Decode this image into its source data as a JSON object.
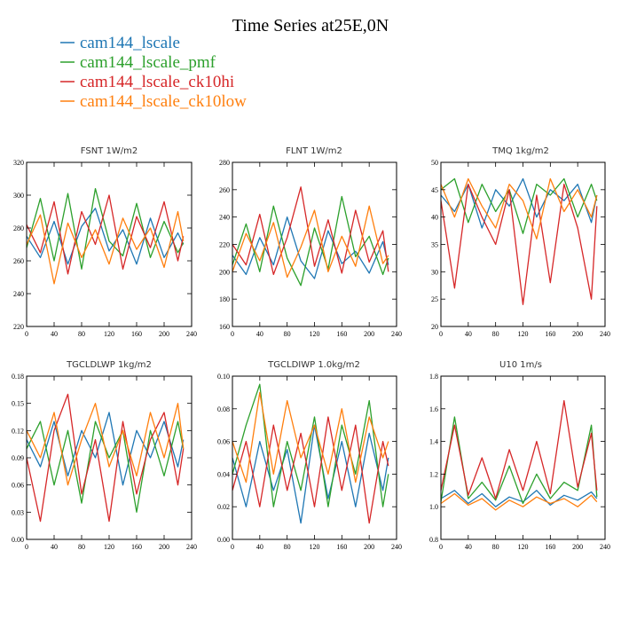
{
  "figure": {
    "title": "Time Series at25E,0N"
  },
  "legend": [
    {
      "name": "cam144_lscale",
      "color": "#1f77b4"
    },
    {
      "name": "cam144_lscale_pmf",
      "color": "#2ca02c"
    },
    {
      "name": "cam144_lscale_ck10hi",
      "color": "#d62728"
    },
    {
      "name": "cam144_lscale_ck10low",
      "color": "#ff7f0e"
    }
  ],
  "chart_data": [
    {
      "type": "line",
      "title": "FSNT   1W/m2",
      "xlim": [
        0,
        240
      ],
      "ylim": [
        220,
        320
      ],
      "xticks": [
        0,
        40,
        80,
        120,
        160,
        200,
        240
      ],
      "yticks": [
        220,
        240,
        260,
        280,
        300,
        320
      ],
      "yfmt": 0,
      "x": [
        0,
        20,
        40,
        60,
        80,
        100,
        120,
        140,
        160,
        180,
        200,
        220,
        228
      ],
      "series": [
        {
          "name": "cam144_lscale",
          "color": "#1f77b4",
          "values": [
            275,
            262,
            284,
            258,
            281,
            292,
            266,
            279,
            258,
            286,
            262,
            277,
            270
          ]
        },
        {
          "name": "cam144_lscale_pmf",
          "color": "#2ca02c",
          "values": [
            268,
            298,
            260,
            301,
            255,
            304,
            272,
            263,
            295,
            262,
            284,
            265,
            271
          ]
        },
        {
          "name": "cam144_lscale_ck10hi",
          "color": "#d62728",
          "values": [
            282,
            265,
            296,
            252,
            290,
            270,
            300,
            255,
            287,
            268,
            296,
            260,
            275
          ]
        },
        {
          "name": "cam144_lscale_ck10low",
          "color": "#ff7f0e",
          "values": [
            270,
            288,
            246,
            283,
            262,
            279,
            258,
            286,
            267,
            280,
            256,
            290,
            272
          ]
        }
      ]
    },
    {
      "type": "line",
      "title": "FLNT   1W/m2",
      "xlim": [
        0,
        240
      ],
      "ylim": [
        160,
        280
      ],
      "xticks": [
        0,
        40,
        80,
        120,
        160,
        200,
        240
      ],
      "yticks": [
        160,
        180,
        200,
        220,
        240,
        260,
        280
      ],
      "yfmt": 0,
      "x": [
        0,
        20,
        40,
        60,
        80,
        100,
        120,
        140,
        160,
        180,
        200,
        220,
        228
      ],
      "series": [
        {
          "name": "cam144_lscale",
          "color": "#1f77b4",
          "values": [
            212,
            198,
            225,
            205,
            240,
            208,
            195,
            230,
            206,
            215,
            199,
            222,
            205
          ]
        },
        {
          "name": "cam144_lscale_pmf",
          "color": "#2ca02c",
          "values": [
            205,
            235,
            200,
            248,
            210,
            190,
            232,
            202,
            255,
            211,
            226,
            198,
            210
          ]
        },
        {
          "name": "cam144_lscale_ck10hi",
          "color": "#d62728",
          "values": [
            220,
            205,
            242,
            198,
            225,
            262,
            204,
            238,
            199,
            245,
            207,
            230,
            200
          ]
        },
        {
          "name": "cam144_lscale_ck10low",
          "color": "#ff7f0e",
          "values": [
            200,
            228,
            208,
            236,
            196,
            218,
            245,
            200,
            226,
            204,
            248,
            206,
            212
          ]
        }
      ]
    },
    {
      "type": "line",
      "title": "TMQ   1kg/m2",
      "xlim": [
        0,
        240
      ],
      "ylim": [
        20,
        50
      ],
      "xticks": [
        0,
        40,
        80,
        120,
        160,
        200,
        240
      ],
      "yticks": [
        20,
        25,
        30,
        35,
        40,
        45,
        50
      ],
      "yfmt": 0,
      "x": [
        0,
        20,
        40,
        60,
        80,
        100,
        120,
        140,
        160,
        180,
        200,
        220,
        228
      ],
      "series": [
        {
          "name": "cam144_lscale",
          "color": "#1f77b4",
          "values": [
            44,
            41,
            46,
            38,
            45,
            42,
            47,
            40,
            45,
            43,
            46,
            39,
            44
          ]
        },
        {
          "name": "cam144_lscale_pmf",
          "color": "#2ca02c",
          "values": [
            45,
            47,
            39,
            46,
            41,
            45,
            37,
            46,
            44,
            47,
            40,
            46,
            43
          ]
        },
        {
          "name": "cam144_lscale_ck10hi",
          "color": "#d62728",
          "values": [
            43,
            27,
            46,
            40,
            35,
            45,
            24,
            44,
            28,
            46,
            38,
            25,
            42
          ]
        },
        {
          "name": "cam144_lscale_ck10low",
          "color": "#ff7f0e",
          "values": [
            46,
            40,
            47,
            42,
            38,
            46,
            43,
            36,
            47,
            41,
            45,
            40,
            44
          ]
        }
      ]
    },
    {
      "type": "line",
      "title": "TGCLDLWP   1kg/m2",
      "xlim": [
        0,
        240
      ],
      "ylim": [
        0,
        0.18
      ],
      "xticks": [
        0,
        40,
        80,
        120,
        160,
        200,
        240
      ],
      "yticks": [
        0,
        0.03,
        0.06,
        0.09,
        0.12,
        0.15,
        0.18
      ],
      "yfmt": 2,
      "x": [
        0,
        20,
        40,
        60,
        80,
        100,
        120,
        140,
        160,
        180,
        200,
        220,
        228
      ],
      "series": [
        {
          "name": "cam144_lscale",
          "color": "#1f77b4",
          "values": [
            0.11,
            0.08,
            0.13,
            0.07,
            0.12,
            0.09,
            0.14,
            0.06,
            0.12,
            0.09,
            0.13,
            0.08,
            0.11
          ]
        },
        {
          "name": "cam144_lscale_pmf",
          "color": "#2ca02c",
          "values": [
            0.1,
            0.13,
            0.06,
            0.12,
            0.04,
            0.13,
            0.09,
            0.12,
            0.03,
            0.12,
            0.07,
            0.13,
            0.1
          ]
        },
        {
          "name": "cam144_lscale_ck10hi",
          "color": "#d62728",
          "values": [
            0.09,
            0.02,
            0.12,
            0.16,
            0.05,
            0.11,
            0.02,
            0.13,
            0.05,
            0.11,
            0.14,
            0.06,
            0.1
          ]
        },
        {
          "name": "cam144_lscale_ck10low",
          "color": "#ff7f0e",
          "values": [
            0.12,
            0.09,
            0.14,
            0.06,
            0.11,
            0.15,
            0.08,
            0.12,
            0.07,
            0.14,
            0.09,
            0.15,
            0.1
          ]
        }
      ]
    },
    {
      "type": "line",
      "title": "TGCLDIWP   1.0kg/m2",
      "xlim": [
        0,
        240
      ],
      "ylim": [
        0,
        0.1
      ],
      "xticks": [
        0,
        40,
        80,
        120,
        160,
        200,
        240
      ],
      "yticks": [
        0,
        0.02,
        0.04,
        0.06,
        0.08,
        0.1
      ],
      "yfmt": 2,
      "x": [
        0,
        20,
        40,
        60,
        80,
        100,
        120,
        140,
        160,
        180,
        200,
        220,
        228
      ],
      "series": [
        {
          "name": "cam144_lscale",
          "color": "#1f77b4",
          "values": [
            0.05,
            0.02,
            0.06,
            0.03,
            0.055,
            0.01,
            0.07,
            0.025,
            0.06,
            0.02,
            0.065,
            0.03,
            0.05
          ]
        },
        {
          "name": "cam144_lscale_pmf",
          "color": "#2ca02c",
          "values": [
            0.04,
            0.07,
            0.095,
            0.02,
            0.06,
            0.03,
            0.075,
            0.02,
            0.07,
            0.04,
            0.085,
            0.02,
            0.04
          ]
        },
        {
          "name": "cam144_lscale_ck10hi",
          "color": "#d62728",
          "values": [
            0.03,
            0.06,
            0.02,
            0.07,
            0.03,
            0.065,
            0.02,
            0.075,
            0.03,
            0.07,
            0.01,
            0.06,
            0.045
          ]
        },
        {
          "name": "cam144_lscale_ck10low",
          "color": "#ff7f0e",
          "values": [
            0.06,
            0.035,
            0.09,
            0.04,
            0.085,
            0.05,
            0.07,
            0.04,
            0.08,
            0.035,
            0.075,
            0.05,
            0.06
          ]
        }
      ]
    },
    {
      "type": "line",
      "title": "U10   1m/s",
      "xlim": [
        0,
        240
      ],
      "ylim": [
        0.8,
        1.8
      ],
      "xticks": [
        0,
        40,
        80,
        120,
        160,
        200,
        240
      ],
      "yticks": [
        0.8,
        1.0,
        1.2,
        1.4,
        1.6,
        1.8
      ],
      "yfmt": 1,
      "x": [
        0,
        20,
        40,
        60,
        80,
        100,
        120,
        140,
        160,
        180,
        200,
        220,
        228
      ],
      "series": [
        {
          "name": "cam144_lscale",
          "color": "#1f77b4",
          "values": [
            1.05,
            1.1,
            1.02,
            1.08,
            1.0,
            1.06,
            1.03,
            1.1,
            1.01,
            1.07,
            1.04,
            1.09,
            1.05
          ]
        },
        {
          "name": "cam144_lscale_pmf",
          "color": "#2ca02c",
          "values": [
            1.03,
            1.55,
            1.05,
            1.15,
            1.04,
            1.25,
            1.02,
            1.2,
            1.05,
            1.15,
            1.1,
            1.5,
            1.06
          ]
        },
        {
          "name": "cam144_lscale_ck10hi",
          "color": "#d62728",
          "values": [
            1.1,
            1.5,
            1.07,
            1.3,
            1.05,
            1.35,
            1.1,
            1.4,
            1.08,
            1.65,
            1.12,
            1.45,
            1.1
          ]
        },
        {
          "name": "cam144_lscale_ck10low",
          "color": "#ff7f0e",
          "values": [
            1.02,
            1.08,
            1.01,
            1.05,
            0.98,
            1.04,
            1.0,
            1.06,
            1.02,
            1.05,
            1.0,
            1.07,
            1.03
          ]
        }
      ]
    }
  ]
}
